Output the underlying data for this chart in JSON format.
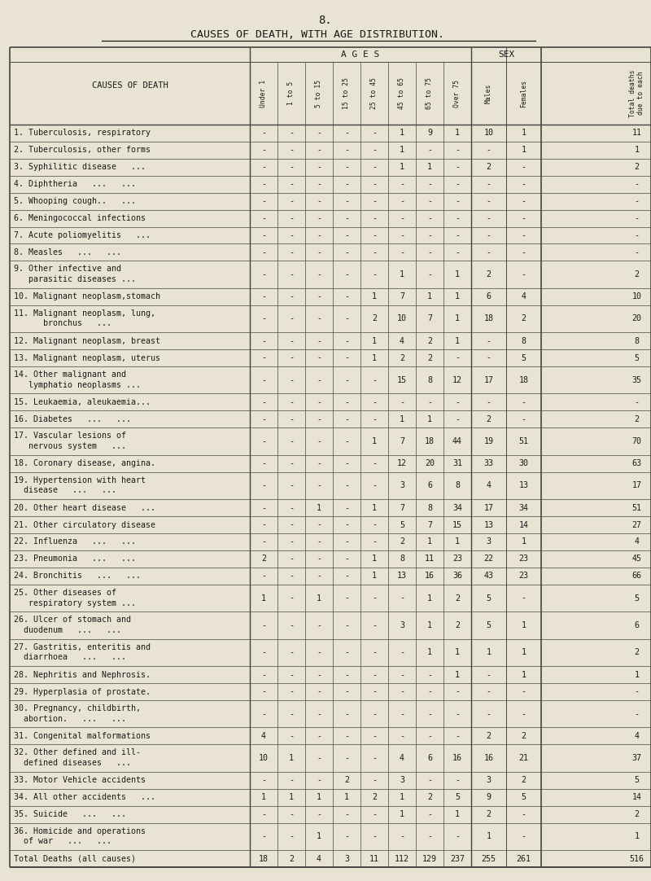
{
  "page_number": "8.",
  "title": "CAUSES OF DEATH, WITH AGE DISTRIBUTION.",
  "age_col_labels": [
    "Under 1",
    "1 to 5",
    "5 to 15",
    "15 to 25",
    "25 to 45",
    "45 to 65",
    "65 to 75",
    "Over 75"
  ],
  "sex_col_labels": [
    "Males",
    "Females"
  ],
  "total_col_label": "Total deaths\ndue to each",
  "rows": [
    {
      "label": "1. Tuberculosis, respiratory",
      "label2": "",
      "data": [
        "-",
        "-",
        "-",
        "-",
        "-",
        "1",
        "9",
        "1",
        "10",
        "1",
        "11"
      ]
    },
    {
      "label": "2. Tuberculosis, other forms",
      "label2": "",
      "data": [
        "-",
        "-",
        "-",
        "-",
        "-",
        "1",
        "-",
        "-",
        "-",
        "1",
        "1"
      ]
    },
    {
      "label": "3. Syphilitic disease   ...",
      "label2": "",
      "data": [
        "-",
        "-",
        "-",
        "-",
        "-",
        "1",
        "1",
        "-",
        "2",
        "-",
        "2"
      ]
    },
    {
      "label": "4. Diphtheria   ...   ...",
      "label2": "",
      "data": [
        "-",
        "-",
        "-",
        "-",
        "-",
        "-",
        "-",
        "-",
        "-",
        "-",
        "-"
      ]
    },
    {
      "label": "5. Whooping cough..   ...",
      "label2": "",
      "data": [
        "-",
        "-",
        "-",
        "-",
        "-",
        "-",
        "-",
        "-",
        "-",
        "-",
        "-"
      ]
    },
    {
      "label": "6. Meningococcal infections",
      "label2": "",
      "data": [
        "-",
        "-",
        "-",
        "-",
        "-",
        "-",
        "-",
        "-",
        "-",
        "-",
        "-"
      ]
    },
    {
      "label": "7. Acute poliomyelitis   ...",
      "label2": "",
      "data": [
        "-",
        "-",
        "-",
        "-",
        "-",
        "-",
        "-",
        "-",
        "-",
        "-",
        "-"
      ]
    },
    {
      "label": "8. Measles   ...   ...",
      "label2": "",
      "data": [
        "-",
        "-",
        "-",
        "-",
        "-",
        "-",
        "-",
        "-",
        "-",
        "-",
        "-"
      ]
    },
    {
      "label": "9. Other infective and",
      "label2": "   parasitic diseases ...",
      "data": [
        "-",
        "-",
        "-",
        "-",
        "-",
        "1",
        "-",
        "1",
        "2",
        "-",
        "2"
      ]
    },
    {
      "label": "10. Malignant neoplasm,stomach",
      "label2": "",
      "data": [
        "-",
        "-",
        "-",
        "-",
        "1",
        "7",
        "1",
        "1",
        "6",
        "4",
        "10"
      ]
    },
    {
      "label": "11. Malignant neoplasm, lung,",
      "label2": "      bronchus   ...",
      "data": [
        "-",
        "-",
        "-",
        "-",
        "2",
        "10",
        "7",
        "1",
        "18",
        "2",
        "20"
      ]
    },
    {
      "label": "12. Malignant neoplasm, breast",
      "label2": "",
      "data": [
        "-",
        "-",
        "-",
        "-",
        "1",
        "4",
        "2",
        "1",
        "-",
        "8",
        "8"
      ]
    },
    {
      "label": "13. Malignant neoplasm, uterus",
      "label2": "",
      "data": [
        "-",
        "-",
        "-",
        "-",
        "1",
        "2",
        "2",
        "-",
        "-",
        "5",
        "5"
      ]
    },
    {
      "label": "14. Other malignant and",
      "label2": "   lymphatio neoplasms ...",
      "data": [
        "-",
        "-",
        "-",
        "-",
        "-",
        "15",
        "8",
        "12",
        "17",
        "18",
        "35"
      ]
    },
    {
      "label": "15. Leukaemia, aleukaemia...",
      "label2": "",
      "data": [
        "-",
        "-",
        "-",
        "-",
        "-",
        "-",
        "-",
        "-",
        "-",
        "-",
        "-"
      ]
    },
    {
      "label": "16. Diabetes   ...   ...",
      "label2": "",
      "data": [
        "-",
        "-",
        "-",
        "-",
        "-",
        "1",
        "1",
        "-",
        "2",
        "-",
        "2"
      ]
    },
    {
      "label": "17. Vascular lesions of",
      "label2": "   nervous system   ...",
      "data": [
        "-",
        "-",
        "-",
        "-",
        "1",
        "7",
        "18",
        "44",
        "19",
        "51",
        "70"
      ]
    },
    {
      "label": "18. Coronary disease, angina.",
      "label2": "",
      "data": [
        "-",
        "-",
        "-",
        "-",
        "-",
        "12",
        "20",
        "31",
        "33",
        "30",
        "63"
      ]
    },
    {
      "label": "19. Hypertension with heart",
      "label2": "  disease   ...   ...",
      "data": [
        "-",
        "-",
        "-",
        "-",
        "-",
        "3",
        "6",
        "8",
        "4",
        "13",
        "17"
      ]
    },
    {
      "label": "20. Other heart disease   ...",
      "label2": "",
      "data": [
        "-",
        "-",
        "1",
        "-",
        "1",
        "7",
        "8",
        "34",
        "17",
        "34",
        "51"
      ]
    },
    {
      "label": "21. Other circulatory disease",
      "label2": "",
      "data": [
        "-",
        "-",
        "-",
        "-",
        "-",
        "5",
        "7",
        "15",
        "13",
        "14",
        "27"
      ]
    },
    {
      "label": "22. Influenza   ...   ...",
      "label2": "",
      "data": [
        "-",
        "-",
        "-",
        "-",
        "-",
        "2",
        "1",
        "1",
        "3",
        "1",
        "4"
      ]
    },
    {
      "label": "23. Pneumonia   ...   ...",
      "label2": "",
      "data": [
        "2",
        "-",
        "-",
        "-",
        "1",
        "8",
        "11",
        "23",
        "22",
        "23",
        "45"
      ]
    },
    {
      "label": "24. Bronchitis   ...   ...",
      "label2": "",
      "data": [
        "-",
        "-",
        "-",
        "-",
        "1",
        "13",
        "16",
        "36",
        "43",
        "23",
        "66"
      ]
    },
    {
      "label": "25. Other diseases of",
      "label2": "   respiratory system ...",
      "data": [
        "1",
        "-",
        "1",
        "-",
        "-",
        "-",
        "1",
        "2",
        "5",
        "-",
        "5"
      ]
    },
    {
      "label": "26. Ulcer of stomach and",
      "label2": "  duodenum   ...   ...",
      "data": [
        "-",
        "-",
        "-",
        "-",
        "-",
        "3",
        "1",
        "2",
        "5",
        "1",
        "6"
      ]
    },
    {
      "label": "27. Gastritis, enteritis and",
      "label2": "  diarrhoea   ...   ...",
      "data": [
        "-",
        "-",
        "-",
        "-",
        "-",
        "-",
        "1",
        "1",
        "1",
        "1",
        "2"
      ]
    },
    {
      "label": "28. Nephritis and Nephrosis.",
      "label2": "",
      "data": [
        "-",
        "-",
        "-",
        "-",
        "-",
        "-",
        "-",
        "1",
        "-",
        "1",
        "1"
      ]
    },
    {
      "label": "29. Hyperplasia of prostate.",
      "label2": "",
      "data": [
        "-",
        "-",
        "-",
        "-",
        "-",
        "-",
        "-",
        "-",
        "-",
        "-",
        "-"
      ]
    },
    {
      "label": "30. Pregnancy, childbirth,",
      "label2": "  abortion.   ...   ...",
      "data": [
        "-",
        "-",
        "-",
        "-",
        "-",
        "-",
        "-",
        "-",
        "-",
        "-",
        "-"
      ]
    },
    {
      "label": "31. Congenital malformations",
      "label2": "",
      "data": [
        "4",
        "-",
        "-",
        "-",
        "-",
        "-",
        "-",
        "-",
        "2",
        "2",
        "4"
      ]
    },
    {
      "label": "32. Other defined and ill-",
      "label2": "  defined diseases   ...",
      "data": [
        "10",
        "1",
        "-",
        "-",
        "-",
        "4",
        "6",
        "16",
        "16",
        "21",
        "37"
      ]
    },
    {
      "label": "33. Motor Vehicle accidents",
      "label2": "",
      "data": [
        "-",
        "-",
        "-",
        "2",
        "-",
        "3",
        "-",
        "-",
        "3",
        "2",
        "5"
      ]
    },
    {
      "label": "34. All other accidents   ...",
      "label2": "",
      "data": [
        "1",
        "1",
        "1",
        "1",
        "2",
        "1",
        "2",
        "5",
        "9",
        "5",
        "14"
      ]
    },
    {
      "label": "35. Suicide   ...   ...",
      "label2": "",
      "data": [
        "-",
        "-",
        "-",
        "-",
        "-",
        "1",
        "-",
        "1",
        "2",
        "-",
        "2"
      ]
    },
    {
      "label": "36. Homicide and operations",
      "label2": "  of war   ...   ...",
      "data": [
        "-",
        "-",
        "1",
        "-",
        "-",
        "-",
        "-",
        "-",
        "1",
        "-",
        "1"
      ]
    },
    {
      "label": "Total Deaths (all causes)",
      "label2": "",
      "data": [
        "18",
        "2",
        "4",
        "3",
        "11",
        "112",
        "129",
        "237",
        "255",
        "261",
        "516"
      ]
    }
  ],
  "bg_color": "#e8e3d3",
  "text_color": "#1a1a1a",
  "line_color": "#444444"
}
